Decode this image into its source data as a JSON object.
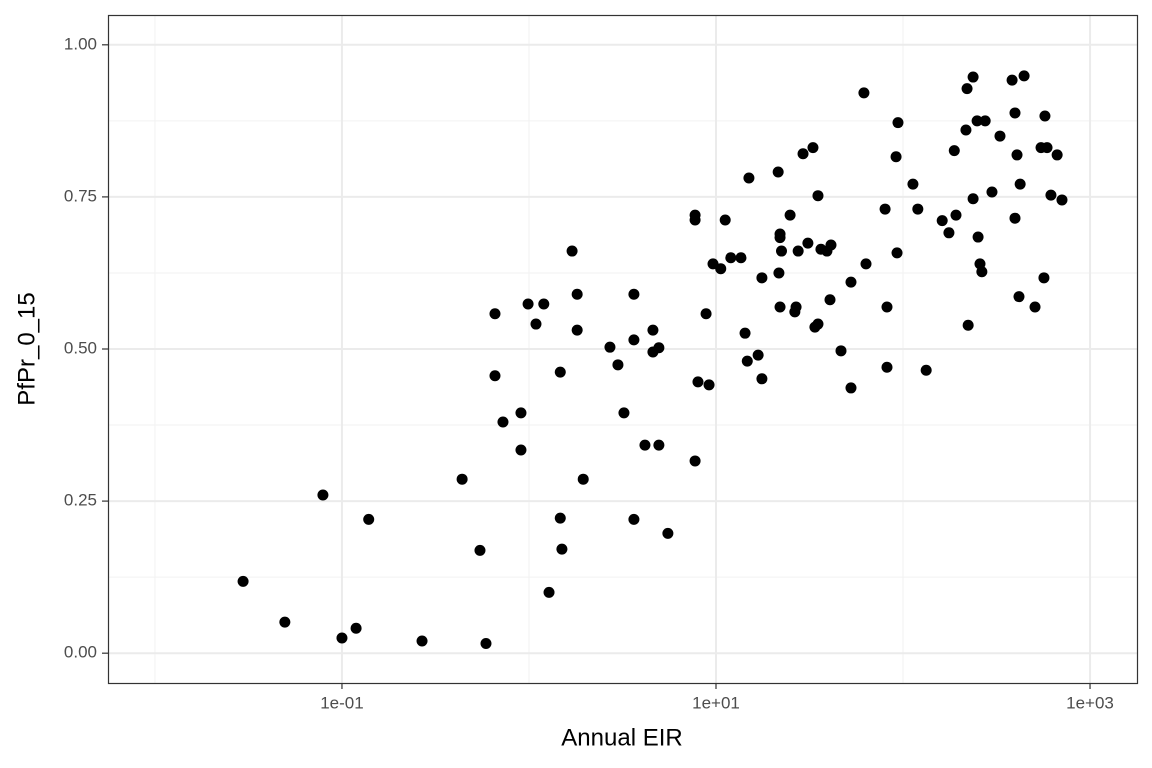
{
  "chart_data": {
    "type": "scatter",
    "x_label": "Annual EIR",
    "y_label": "PfPr_0_15",
    "x": [
      0.0296,
      0.0495,
      0.0791,
      0.1,
      0.119,
      0.139,
      0.268,
      0.439,
      0.547,
      0.589,
      0.658,
      0.658,
      0.726,
      0.906,
      0.906,
      0.989,
      1.09,
      1.2,
      1.28,
      1.47,
      1.47,
      1.5,
      1.7,
      1.81,
      1.81,
      1.95,
      2.71,
      2.99,
      3.22,
      3.64,
      3.64,
      3.64,
      4.17,
      4.6,
      4.6,
      4.95,
      4.95,
      5.53,
      7.73,
      7.73,
      7.73,
      8.01,
      8.85,
      9.18,
      9.64,
      10.6,
      11.2,
      12.0,
      13.6,
      14.3,
      14.7,
      15.0,
      16.8,
      17.6,
      17.6,
      21.5,
      21.7,
      22.0,
      22.0,
      22.4,
      22.0,
      24.9,
      26.4,
      26.8,
      27.5,
      29.2,
      31.0,
      33.0,
      33.8,
      35.1,
      35.1,
      36.4,
      39.2,
      41.2,
      40.7,
      46.6,
      52.7,
      52.7,
      61.8,
      63.4,
      80.2,
      82.1,
      82.1,
      91.8,
      94.0,
      92.9,
      113,
      120,
      133,
      162,
      176,
      188,
      192,
      217,
      220,
      223,
      237,
      237,
      249,
      252,
      258,
      264,
      275,
      299,
      330,
      383,
      397,
      397,
      407,
      423,
      417,
      444,
      508,
      547,
      567,
      574,
      589,
      618,
      667,
      708
    ],
    "y": [
      0.118,
      0.051,
      0.26,
      0.025,
      0.041,
      0.22,
      0.02,
      0.286,
      0.169,
      0.016,
      0.558,
      0.456,
      0.38,
      0.395,
      0.334,
      0.574,
      0.541,
      0.574,
      0.1,
      0.462,
      0.222,
      0.171,
      0.661,
      0.59,
      0.531,
      0.286,
      0.503,
      0.474,
      0.395,
      0.59,
      0.515,
      0.22,
      0.342,
      0.531,
      0.495,
      0.502,
      0.342,
      0.197,
      0.316,
      0.72,
      0.712,
      0.446,
      0.558,
      0.441,
      0.64,
      0.632,
      0.712,
      0.65,
      0.65,
      0.526,
      0.48,
      0.781,
      0.49,
      0.451,
      0.617,
      0.791,
      0.625,
      0.689,
      0.683,
      0.661,
      0.569,
      0.72,
      0.561,
      0.569,
      0.661,
      0.821,
      0.674,
      0.831,
      0.536,
      0.541,
      0.752,
      0.664,
      0.661,
      0.671,
      0.581,
      0.497,
      0.61,
      0.436,
      0.921,
      0.64,
      0.73,
      0.569,
      0.47,
      0.816,
      0.872,
      0.658,
      0.771,
      0.73,
      0.465,
      0.711,
      0.691,
      0.826,
      0.72,
      0.86,
      0.928,
      0.539,
      0.947,
      0.747,
      0.875,
      0.684,
      0.64,
      0.627,
      0.875,
      0.758,
      0.85,
      0.942,
      0.888,
      0.715,
      0.819,
      0.771,
      0.586,
      0.949,
      0.569,
      0.831,
      0.617,
      0.883,
      0.831,
      0.753,
      0.819,
      0.745
    ],
    "xscale": "log",
    "xlim": [
      0.00561,
      1783
    ],
    "ylim": [
      -0.049,
      1.049
    ],
    "xticks": [
      {
        "value": 0.1,
        "label": "1e-01"
      },
      {
        "value": 10,
        "label": "1e+01"
      },
      {
        "value": 1000,
        "label": "1e+03"
      }
    ],
    "yticks": [
      {
        "value": 0,
        "label": "0.00"
      },
      {
        "value": 0.25,
        "label": "0.25"
      },
      {
        "value": 0.5,
        "label": "0.50"
      },
      {
        "value": 0.75,
        "label": "0.75"
      },
      {
        "value": 1,
        "label": "1.00"
      }
    ],
    "color": "#000000",
    "grid": true
  }
}
